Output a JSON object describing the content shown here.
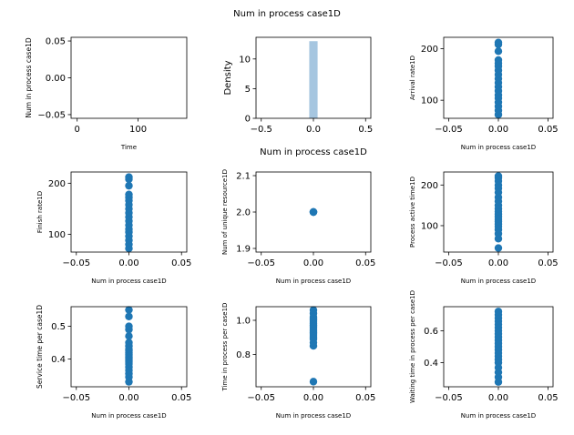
{
  "figure": {
    "suptitle": "Num in process case1D",
    "colors": {
      "points": "#1f77b4",
      "hist": "#a6c6e0",
      "axis": "#000000"
    }
  },
  "chart_data": [
    {
      "type": "line",
      "title": "",
      "xlabel": "Time",
      "ylabel": "Num in process case1D",
      "xlim": [
        -10,
        180
      ],
      "ylim": [
        -0.055,
        0.055
      ],
      "xticks": [
        0,
        100
      ],
      "xtick_labels": [
        "0",
        "100"
      ],
      "yticks": [
        -0.05,
        0.0,
        0.05
      ],
      "ytick_labels": [
        "−0.05",
        "0.00",
        "0.05"
      ],
      "series": [
        {
          "x": [],
          "y": []
        }
      ]
    },
    {
      "type": "bar",
      "title": "",
      "xlabel": "Num in process case1D",
      "ylabel": "Density",
      "xlim": [
        -0.55,
        0.55
      ],
      "ylim": [
        0,
        13.65
      ],
      "xticks": [
        -0.5,
        0.0,
        0.5
      ],
      "xtick_labels": [
        "−0.5",
        "0.0",
        "0.5"
      ],
      "yticks": [
        0,
        5,
        10
      ],
      "ytick_labels": [
        "0",
        "5",
        "10"
      ],
      "bins": [
        {
          "x0": -0.04,
          "x1": 0.04,
          "value": 13
        }
      ]
    },
    {
      "type": "scatter",
      "title": "",
      "xlabel": "Num in process case1D",
      "ylabel": "Arrival rate1D",
      "xlim": [
        -0.055,
        0.055
      ],
      "ylim": [
        65,
        222
      ],
      "xticks": [
        -0.05,
        0.0,
        0.05
      ],
      "xtick_labels": [
        "−0.05",
        "0.00",
        "0.05"
      ],
      "yticks": [
        100,
        200
      ],
      "ytick_labels": [
        "100",
        "200"
      ],
      "x": [
        0,
        0,
        0,
        0,
        0,
        0,
        0,
        0,
        0,
        0,
        0,
        0,
        0,
        0,
        0,
        0,
        0,
        0
      ],
      "y": [
        72,
        80,
        88,
        96,
        104,
        110,
        118,
        126,
        134,
        142,
        150,
        158,
        166,
        172,
        178,
        195,
        208,
        212
      ]
    },
    {
      "type": "scatter",
      "title": "",
      "xlabel": "Num in process case1D",
      "ylabel": "Finish rate1D",
      "xlim": [
        -0.055,
        0.055
      ],
      "ylim": [
        65,
        222
      ],
      "xticks": [
        -0.05,
        0.0,
        0.05
      ],
      "xtick_labels": [
        "−0.05",
        "0.00",
        "0.05"
      ],
      "yticks": [
        100,
        200
      ],
      "ytick_labels": [
        "100",
        "200"
      ],
      "x": [
        0,
        0,
        0,
        0,
        0,
        0,
        0,
        0,
        0,
        0,
        0,
        0,
        0,
        0,
        0,
        0,
        0,
        0
      ],
      "y": [
        72,
        80,
        88,
        96,
        104,
        110,
        118,
        126,
        134,
        142,
        150,
        158,
        166,
        172,
        178,
        195,
        208,
        212
      ]
    },
    {
      "type": "scatter",
      "title": "",
      "xlabel": "Num in process case1D",
      "ylabel": "Num of unique resource1D",
      "xlim": [
        -0.055,
        0.055
      ],
      "ylim": [
        1.89,
        2.11
      ],
      "xticks": [
        -0.05,
        0.0,
        0.05
      ],
      "xtick_labels": [
        "−0.05",
        "0.00",
        "0.05"
      ],
      "yticks": [
        1.9,
        2.0,
        2.1
      ],
      "ytick_labels": [
        "1.9",
        "2.0",
        "2.1"
      ],
      "x": [
        0,
        0,
        0,
        0
      ],
      "y": [
        2.0,
        2.0,
        2.0,
        2.0
      ]
    },
    {
      "type": "scatter",
      "title": "",
      "xlabel": "Num in process case1D",
      "ylabel": "Process active time1D",
      "xlim": [
        -0.055,
        0.055
      ],
      "ylim": [
        35,
        232
      ],
      "xticks": [
        -0.05,
        0.0,
        0.05
      ],
      "xtick_labels": [
        "−0.05",
        "0.00",
        "0.05"
      ],
      "yticks": [
        100,
        200
      ],
      "ytick_labels": [
        "100",
        "200"
      ],
      "x": [
        0,
        0,
        0,
        0,
        0,
        0,
        0,
        0,
        0,
        0,
        0,
        0,
        0,
        0,
        0,
        0,
        0,
        0,
        0,
        0,
        0
      ],
      "y": [
        45,
        68,
        80,
        90,
        98,
        104,
        110,
        116,
        122,
        128,
        135,
        142,
        150,
        160,
        170,
        182,
        192,
        200,
        210,
        218,
        222
      ]
    },
    {
      "type": "scatter",
      "title": "",
      "xlabel": "Num in process case1D",
      "ylabel": "Service time per case1D",
      "xlim": [
        -0.055,
        0.055
      ],
      "ylim": [
        0.315,
        0.56
      ],
      "xticks": [
        -0.05,
        0.0,
        0.05
      ],
      "xtick_labels": [
        "−0.05",
        "0.00",
        "0.05"
      ],
      "yticks": [
        0.4,
        0.5
      ],
      "ytick_labels": [
        "0.4",
        "0.5"
      ],
      "x": [
        0,
        0,
        0,
        0,
        0,
        0,
        0,
        0,
        0,
        0,
        0,
        0,
        0,
        0,
        0,
        0,
        0,
        0,
        0,
        0,
        0,
        0
      ],
      "y": [
        0.33,
        0.345,
        0.355,
        0.365,
        0.375,
        0.385,
        0.39,
        0.395,
        0.4,
        0.405,
        0.41,
        0.415,
        0.42,
        0.425,
        0.43,
        0.44,
        0.45,
        0.47,
        0.49,
        0.5,
        0.53,
        0.55
      ]
    },
    {
      "type": "scatter",
      "title": "",
      "xlabel": "Num in process case1D",
      "ylabel": "Time in process per case1D",
      "xlim": [
        -0.055,
        0.055
      ],
      "ylim": [
        0.61,
        1.08
      ],
      "xticks": [
        -0.05,
        0.0,
        0.05
      ],
      "xtick_labels": [
        "−0.05",
        "0.00",
        "0.05"
      ],
      "yticks": [
        0.8,
        1.0
      ],
      "ytick_labels": [
        "0.8",
        "1.0"
      ],
      "x": [
        0,
        0,
        0,
        0,
        0,
        0,
        0,
        0,
        0,
        0,
        0,
        0,
        0,
        0,
        0,
        0,
        0,
        0,
        0
      ],
      "y": [
        0.64,
        0.85,
        0.87,
        0.89,
        0.9,
        0.91,
        0.92,
        0.93,
        0.94,
        0.95,
        0.96,
        0.97,
        0.98,
        0.99,
        1.0,
        1.01,
        1.02,
        1.04,
        1.06
      ]
    },
    {
      "type": "scatter",
      "title": "",
      "xlabel": "Num in process case1D",
      "ylabel": "Waiting time in process per case1D",
      "xlim": [
        -0.055,
        0.055
      ],
      "ylim": [
        0.25,
        0.75
      ],
      "xticks": [
        -0.05,
        0.0,
        0.05
      ],
      "xtick_labels": [
        "−0.05",
        "0.00",
        "0.05"
      ],
      "yticks": [
        0.4,
        0.6
      ],
      "ytick_labels": [
        "0.4",
        "0.6"
      ],
      "x": [
        0,
        0,
        0,
        0,
        0,
        0,
        0,
        0,
        0,
        0,
        0,
        0,
        0,
        0,
        0,
        0,
        0,
        0,
        0,
        0,
        0
      ],
      "y": [
        0.28,
        0.31,
        0.34,
        0.37,
        0.4,
        0.42,
        0.44,
        0.46,
        0.48,
        0.5,
        0.52,
        0.54,
        0.56,
        0.58,
        0.6,
        0.62,
        0.64,
        0.66,
        0.68,
        0.7,
        0.72
      ]
    }
  ]
}
